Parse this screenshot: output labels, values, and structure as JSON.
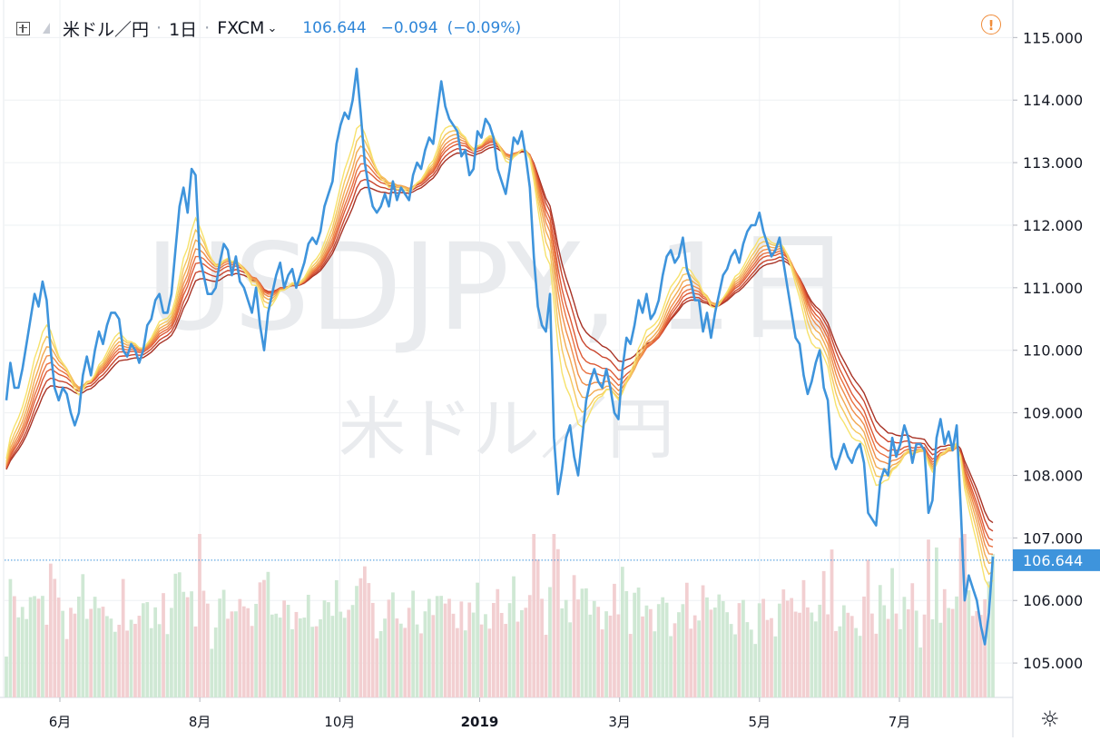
{
  "header": {
    "symbol": "米ドル／円",
    "interval": "1日",
    "exchange": "FXCM",
    "last": "106.644",
    "change": "−0.094",
    "change_pct": "(−0.09%)"
  },
  "watermark": {
    "line1": "USDJPY, 1日",
    "line2": "米ドル／円"
  },
  "colors": {
    "price_line": "#3e94dc",
    "price_tag": "#3e94dc",
    "ribbon": [
      "#f7e26c",
      "#f5c75e",
      "#f2aa52",
      "#ef8d49",
      "#e97140",
      "#dd5a36",
      "#c9452d",
      "#a73225"
    ],
    "volume_up": "#cfe8d4",
    "volume_down": "#f2cfd1"
  },
  "chart_data": {
    "type": "line",
    "title": "",
    "x_ticks": [
      "6月",
      "8月",
      "10月",
      "2019",
      "3月",
      "5月",
      "7月"
    ],
    "y_ticks": [
      "115.000",
      "114.000",
      "113.000",
      "112.000",
      "111.000",
      "110.000",
      "109.000",
      "108.000",
      "107.000",
      "106.000",
      "105.000"
    ],
    "ylim": [
      104.45,
      115.6
    ],
    "last_price": 106.644,
    "last_price_label": "106.644",
    "series": [
      {
        "values": [
          109.2,
          109.8,
          109.4,
          109.4,
          109.7,
          110.1,
          110.5,
          110.9,
          110.7,
          111.1,
          110.8,
          110.0,
          109.4,
          109.2,
          109.4,
          109.3,
          109.0,
          108.8,
          109.0,
          109.6,
          109.9,
          109.6,
          110.0,
          110.3,
          110.1,
          110.4,
          110.6,
          110.6,
          110.5,
          110.0,
          109.9,
          110.1,
          110.0,
          109.8,
          110.0,
          110.4,
          110.5,
          110.8,
          110.9,
          110.6,
          110.6,
          110.9,
          111.6,
          112.3,
          112.6,
          112.2,
          112.9,
          112.8,
          111.5,
          111.2,
          110.9,
          110.9,
          111.0,
          111.4,
          111.7,
          111.6,
          111.2,
          111.5,
          111.1,
          111.0,
          110.8,
          110.6,
          111.0,
          110.4,
          110.0,
          110.6,
          110.9,
          111.2,
          111.4,
          111.0,
          111.2,
          111.3,
          111.0,
          111.2,
          111.4,
          111.7,
          111.8,
          111.7,
          111.9,
          112.3,
          112.5,
          112.7,
          113.3,
          113.6,
          113.8,
          113.7,
          114.0,
          114.5,
          113.8,
          113.0,
          112.6,
          112.3,
          112.2,
          112.3,
          112.5,
          112.3,
          112.7,
          112.4,
          112.6,
          112.5,
          112.4,
          112.8,
          113.0,
          112.9,
          113.2,
          113.4,
          113.3,
          113.8,
          114.3,
          113.9,
          113.7,
          113.6,
          113.5,
          113.1,
          113.2,
          112.8,
          112.9,
          113.5,
          113.4,
          113.7,
          113.6,
          113.4,
          112.9,
          112.7,
          112.5,
          112.9,
          113.4,
          113.3,
          113.5,
          113.1,
          112.6,
          111.5,
          110.7,
          110.4,
          110.3,
          110.9,
          108.6,
          107.7,
          108.1,
          108.6,
          108.8,
          108.3,
          108.0,
          108.6,
          109.2,
          109.5,
          109.7,
          109.5,
          109.4,
          109.7,
          109.4,
          109.0,
          108.9,
          109.7,
          110.2,
          110.1,
          110.4,
          110.8,
          110.6,
          110.9,
          110.5,
          110.6,
          110.8,
          111.2,
          111.5,
          111.6,
          111.4,
          111.5,
          111.8,
          111.3,
          111.1,
          110.8,
          110.8,
          110.3,
          110.6,
          110.2,
          110.6,
          110.9,
          111.2,
          111.3,
          111.5,
          111.6,
          111.4,
          111.7,
          111.9,
          112.0,
          112.0,
          112.2,
          111.9,
          111.7,
          111.5,
          111.6,
          111.8,
          111.4,
          111.0,
          110.6,
          110.2,
          110.1,
          109.6,
          109.3,
          109.5,
          109.8,
          110.0,
          109.4,
          109.2,
          108.3,
          108.1,
          108.3,
          108.5,
          108.3,
          108.2,
          108.4,
          108.5,
          108.2,
          107.4,
          107.3,
          107.2,
          107.9,
          108.1,
          108.0,
          108.6,
          108.3,
          108.5,
          108.8,
          108.6,
          108.2,
          108.5,
          108.5,
          108.4,
          107.4,
          107.6,
          108.6,
          108.9,
          108.5,
          108.7,
          108.4,
          108.8,
          107.5,
          106.0,
          106.4,
          106.2,
          106.0,
          105.6,
          105.3,
          105.8,
          106.7
        ]
      }
    ]
  }
}
